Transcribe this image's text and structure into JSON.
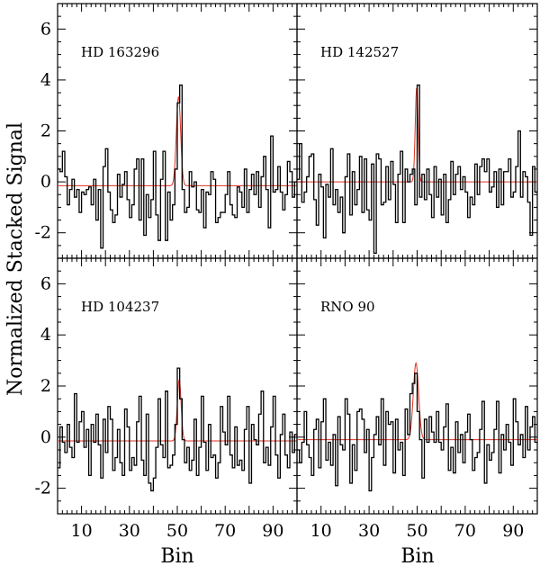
{
  "chart_data": {
    "type": "line",
    "ylabel": "Normalized Stacked Signal",
    "xlabel": "Bin",
    "xlim": [
      0,
      100
    ],
    "ylim": [
      -3,
      7
    ],
    "xticks": [
      10,
      30,
      50,
      70,
      90
    ],
    "yticks": [
      -2,
      0,
      2,
      4,
      6
    ],
    "xtick_labels": [
      "10",
      "30",
      "50",
      "70",
      "90"
    ],
    "ytick_labels": [
      "-2",
      "0",
      "2",
      "4",
      "6"
    ],
    "series_style": {
      "signal": "black step",
      "fit": "red gaussian"
    },
    "panels": [
      {
        "label": "HD 163296",
        "baseline": -0.15,
        "fit": {
          "center": 50.5,
          "amplitude": 3.5,
          "sigma": 0.9
        },
        "values": [
          0.5,
          0.4,
          1.2,
          0.2,
          -0.9,
          -0.3,
          0.1,
          -0.6,
          -0.3,
          -1.2,
          -0.4,
          -0.5,
          -0.3,
          -0.2,
          -0.9,
          0.1,
          -1.5,
          -0.3,
          -2.6,
          0.6,
          1.3,
          -0.4,
          -1.1,
          -1.6,
          -1.3,
          0.3,
          -0.6,
          -0.1,
          0.4,
          -0.7,
          -1.4,
          -0.9,
          0.5,
          0.9,
          -1.5,
          0.9,
          -2.1,
          -0.5,
          -1.4,
          -0.7,
          1.2,
          -1.3,
          -2.3,
          0.1,
          1.2,
          -2.3,
          -0.4,
          -1.5,
          -0.9,
          0.5,
          3.1,
          3.8,
          -0.3,
          -1.2,
          -1.0,
          0.4,
          -0.2,
          0.0,
          -1.1,
          -1.2,
          -0.3,
          -1.8,
          -0.4,
          -0.5,
          0.4,
          0.1,
          -1.6,
          -1.4,
          -1.2,
          -1.2,
          -0.5,
          0.4,
          -0.9,
          -1.3,
          -1.4,
          -0.2,
          -0.4,
          -1.0,
          0.5,
          -1.2,
          -0.3,
          0.3,
          -0.5,
          0.4,
          -1.0,
          0.2,
          1.0,
          -0.3,
          -1.8,
          1.8,
          -0.4,
          -0.3,
          0.6,
          -0.4,
          -1.1,
          -0.5,
          0.8,
          0.4,
          -0.6,
          0.0
        ]
      },
      {
        "label": "HD 142527",
        "baseline": 0.0,
        "fit": {
          "center": 49.8,
          "amplitude": 3.7,
          "sigma": 0.6
        },
        "values": [
          0.1,
          1.5,
          -0.8,
          -0.4,
          0.2,
          1.0,
          1.1,
          -0.7,
          -1.7,
          0.3,
          -0.2,
          -2.2,
          -0.1,
          -0.6,
          1.3,
          -0.9,
          -0.3,
          -1.2,
          -0.6,
          -2.0,
          0.2,
          1.1,
          -1.3,
          0.4,
          -0.9,
          -0.3,
          1.0,
          -1.2,
          0.9,
          -1.1,
          -1.5,
          0.7,
          -2.8,
          1.1,
          0.9,
          -0.9,
          -0.8,
          0.6,
          -0.7,
          0.8,
          -0.1,
          -1.6,
          0.3,
          1.2,
          -1.6,
          0.5,
          0.0,
          0.3,
          0.5,
          -0.9,
          3.8,
          -0.6,
          0.3,
          -0.7,
          0.5,
          -0.5,
          -1.4,
          0.6,
          -0.6,
          0.1,
          -1.3,
          0.3,
          -1.6,
          -0.7,
          0.8,
          -0.5,
          0.3,
          0.6,
          -0.3,
          0.2,
          -0.4,
          -1.4,
          -0.6,
          -0.9,
          0.7,
          -0.5,
          0.6,
          0.9,
          0.4,
          0.9,
          -0.4,
          -0.2,
          0.4,
          -1.0,
          0.5,
          -0.9,
          0.4,
          0.4,
          0.9,
          -0.6,
          -0.4,
          0.6,
          2.0,
          -0.6,
          0.4,
          0.2,
          -0.8,
          -2.1,
          0.6,
          -0.4
        ]
      },
      {
        "label": "HD 104237",
        "baseline": -0.15,
        "fit": {
          "center": 50.8,
          "amplitude": 2.4,
          "sigma": 0.8
        },
        "values": [
          -1.2,
          0.4,
          -0.2,
          -0.6,
          0.5,
          -0.4,
          -0.8,
          1.7,
          -0.2,
          0.6,
          1.0,
          -0.4,
          0.3,
          -1.5,
          0.5,
          -0.2,
          0.9,
          -0.3,
          -1.6,
          0.7,
          -0.6,
          1.2,
          0.7,
          -1.3,
          -0.8,
          0.3,
          -1.0,
          -1.5,
          1.1,
          0.4,
          -1.3,
          -0.8,
          -1.1,
          0.6,
          1.6,
          -0.9,
          -1.5,
          0.9,
          -1.8,
          -2.1,
          -1.6,
          -0.4,
          1.5,
          -0.3,
          -0.8,
          1.8,
          -1.2,
          -1.1,
          -0.7,
          0.5,
          2.7,
          1.5,
          -0.1,
          -1.0,
          -0.4,
          -1.3,
          -0.9,
          0.7,
          -1.5,
          -0.4,
          1.6,
          -0.2,
          -1.3,
          0.5,
          -0.8,
          -0.7,
          -1.6,
          -1.0,
          1.2,
          0.2,
          -0.3,
          1.6,
          -0.7,
          -1.2,
          0.4,
          -1.1,
          -0.9,
          -1.3,
          0.3,
          1.2,
          -1.8,
          0.5,
          -0.1,
          -0.3,
          0.9,
          1.8,
          -1.0,
          -0.4,
          -1.1,
          0.4,
          1.6,
          -0.7,
          -1.6,
          0.1,
          0.9,
          -0.7,
          -1.2,
          0.2,
          -0.6,
          0.1
        ]
      },
      {
        "label": "RNO 90",
        "baseline": -0.1,
        "fit": {
          "center": 49.5,
          "amplitude": 3.0,
          "sigma": 1.1
        },
        "values": [
          -0.5,
          -1.0,
          -0.2,
          1.0,
          -0.3,
          -0.8,
          -1.5,
          0.3,
          0.7,
          -1.2,
          0.6,
          1.5,
          -0.9,
          -0.2,
          -1.1,
          0.1,
          -1.9,
          0.8,
          -0.3,
          -0.5,
          1.5,
          0.9,
          -1.8,
          -0.3,
          -1.3,
          1.0,
          1.1,
          0.7,
          -0.6,
          0.3,
          -2.1,
          -0.8,
          0.1,
          0.8,
          -0.3,
          1.5,
          -1.1,
          1.0,
          0.5,
          0.6,
          -1.4,
          0.7,
          -0.5,
          -0.2,
          -1.5,
          1.1,
          0.1,
          1.7,
          2.1,
          2.5,
          1.0,
          -0.1,
          -1.6,
          0.7,
          -0.2,
          0.8,
          0.2,
          -0.2,
          1.0,
          -0.2,
          -0.5,
          0.4,
          1.3,
          -1.3,
          -0.4,
          -1.4,
          0.6,
          -0.6,
          0.1,
          -1.0,
          0.2,
          0.9,
          -0.1,
          -1.3,
          -0.8,
          -0.6,
          0.3,
          1.4,
          -1.8,
          -0.3,
          -0.9,
          -0.6,
          0.3,
          1.4,
          -1.4,
          0.1,
          -0.5,
          0.5,
          -0.2,
          -1.1,
          1.5,
          0.6,
          -0.3,
          0.1,
          -0.8,
          1.2,
          -0.5,
          0.4,
          0.8,
          -0.2
        ]
      }
    ]
  }
}
